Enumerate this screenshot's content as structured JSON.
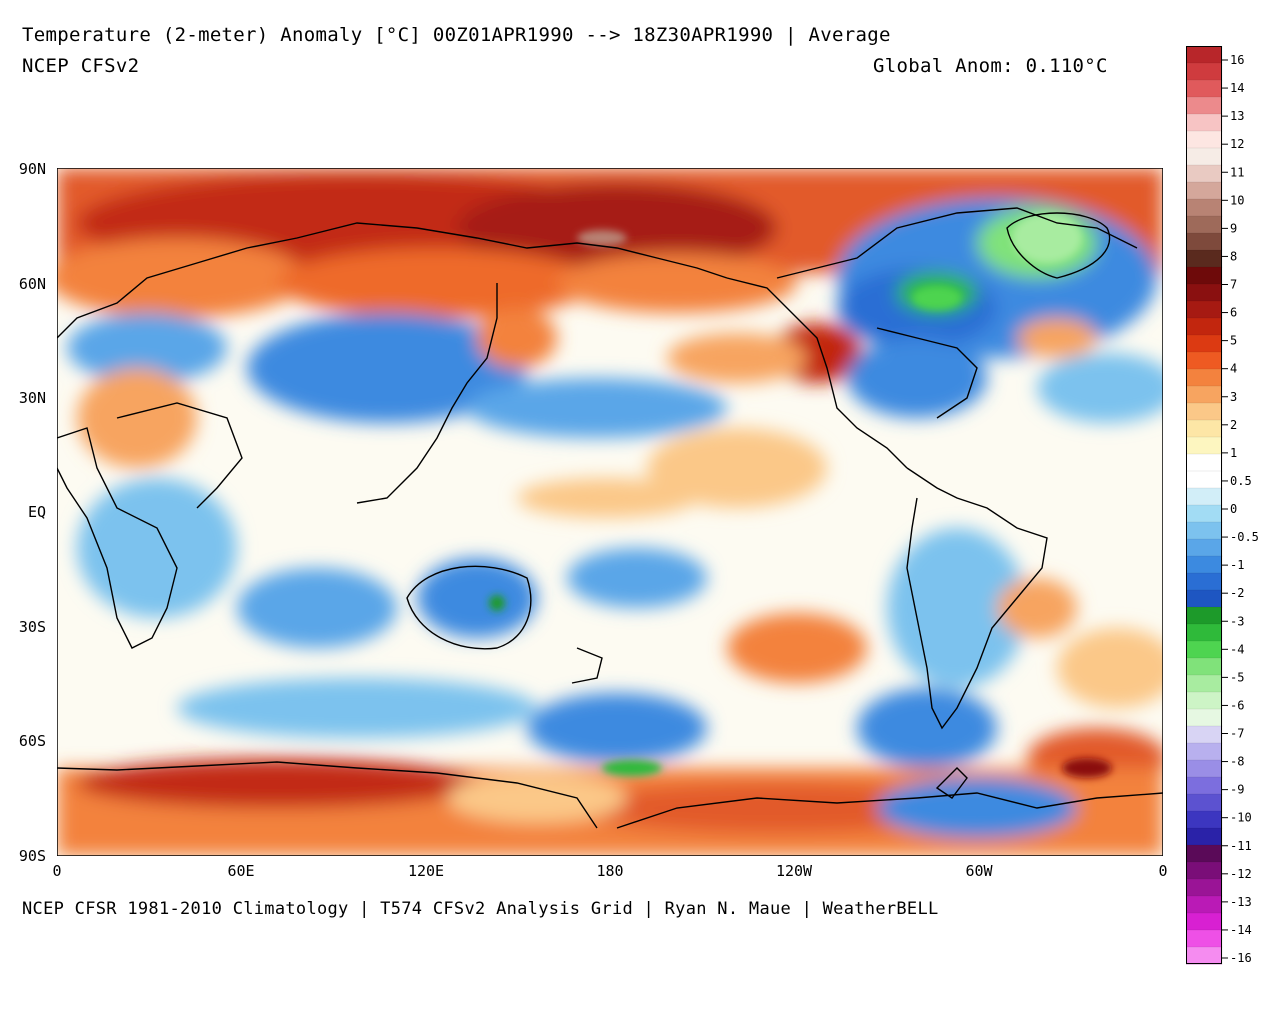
{
  "header": {
    "title": "Temperature (2-meter) Anomaly  [°C] 00Z01APR1990 --> 18Z30APR1990 | Average",
    "subtitle": "NCEP CFSv2",
    "global_anomaly": "Global Anom: 0.110°C"
  },
  "footer": {
    "credits": "NCEP CFSR 1981-2010 Climatology | T574 CFSv2 Analysis Grid | Ryan N. Maue | WeatherBELL"
  },
  "map": {
    "lat_labels": [
      "90N",
      "60N",
      "30N",
      "EQ",
      "30S",
      "60S",
      "90S"
    ],
    "lon_labels": [
      "0",
      "60E",
      "120E",
      "180",
      "120W",
      "60W",
      "0"
    ]
  },
  "colorbar": {
    "labels": [
      "16",
      "14",
      "13",
      "12",
      "11",
      "10",
      "9",
      "8",
      "7",
      "6",
      "5",
      "4",
      "3",
      "2",
      "1",
      "0.5",
      "0",
      "-0.5",
      "-1",
      "-2",
      "-3",
      "-4",
      "-5",
      "-6",
      "-7",
      "-8",
      "-9",
      "-10",
      "-11",
      "-12",
      "-13",
      "-14",
      "-16"
    ],
    "colors": [
      "#b8262a",
      "#cf3b3e",
      "#e05a5c",
      "#ec8a8c",
      "#f7c4c4",
      "#fde6e2",
      "#f6ece6",
      "#e9cac2",
      "#d4a79b",
      "#b88374",
      "#9e6a5a",
      "#7e4a3c",
      "#5a2a1e",
      "#6e0a0a",
      "#8a1010",
      "#a61a12",
      "#c2260e",
      "#dc3a12",
      "#ee5a22",
      "#f3823e",
      "#f7a460",
      "#fbc888",
      "#fde6a6",
      "#fdf6c0",
      "#ffffff",
      "#ffffff",
      "#d2eef8",
      "#a2dcf4",
      "#7cc2ee",
      "#5aa6e8",
      "#3c8ae0",
      "#2a6ed4",
      "#1e56c2",
      "#1d9a2a",
      "#2fba3a",
      "#4ed450",
      "#80e27a",
      "#a8eca0",
      "#cdf4c6",
      "#e6f8e2",
      "#d8d4f4",
      "#b8b0ee",
      "#9a8ee6",
      "#7c6ede",
      "#5c52d0",
      "#3c36c0",
      "#2a22a8",
      "#5a0a58",
      "#7a0e78",
      "#9a1496",
      "#ba1ab6",
      "#d820d2",
      "#ee50e6",
      "#f58cf0"
    ]
  }
}
